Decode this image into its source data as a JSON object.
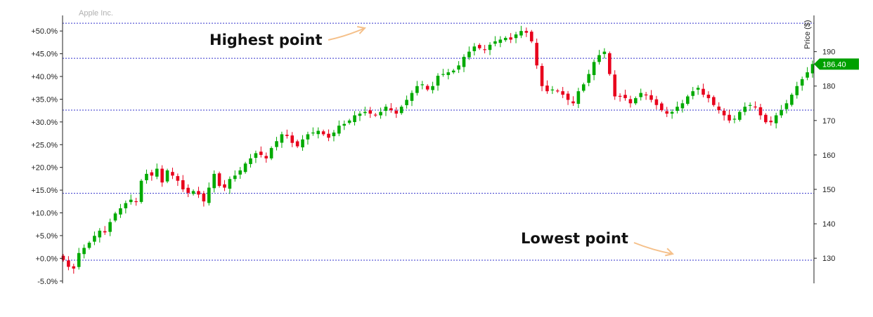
{
  "chart_data": {
    "type": "candlestick",
    "title": "Apple Inc.",
    "ylabel_right": "Price ($)",
    "left_axis": {
      "ticks": [
        -5,
        0,
        5,
        10,
        15,
        20,
        25,
        30,
        35,
        40,
        45,
        50
      ],
      "labels": [
        "-5.0%",
        "+0.0%",
        "+5.0%",
        "+10.0%",
        "+15.0%",
        "+20.0%",
        "+25.0%",
        "+30.0%",
        "+35.0%",
        "+40.0%",
        "+45.0%",
        "+50.0%"
      ],
      "range": [
        -5.5,
        52.5
      ]
    },
    "right_axis": {
      "ticks": [
        130,
        140,
        150,
        160,
        170,
        180,
        190
      ],
      "labels": [
        "130",
        "140",
        "150",
        "160",
        "170",
        "180",
        "190"
      ],
      "range": [
        122.7,
        199.3
      ]
    },
    "last_price": 186.4,
    "last_price_label": "186.40",
    "reference_lines_pct": [
      -0.4,
      14.3,
      32.6,
      44.0,
      51.7
    ],
    "closes": [
      129.5,
      127.5,
      127.0,
      131.5,
      133.0,
      134.5,
      136.5,
      138.0,
      137.5,
      140.5,
      143.0,
      144.5,
      146.0,
      147.0,
      146.5,
      152.5,
      154.5,
      154.0,
      156.0,
      152.0,
      155.5,
      154.0,
      152.5,
      150.0,
      149.0,
      149.5,
      148.5,
      146.5,
      150.5,
      154.5,
      151.0,
      150.5,
      153.0,
      154.0,
      155.5,
      157.5,
      159.0,
      160.5,
      160.0,
      159.0,
      162.0,
      164.0,
      166.0,
      165.5,
      163.5,
      162.5,
      164.5,
      166.0,
      166.5,
      167.0,
      166.0,
      165.0,
      166.5,
      168.5,
      169.0,
      170.0,
      171.5,
      172.0,
      172.5,
      172.0,
      171.5,
      172.5,
      174.0,
      173.0,
      172.0,
      174.0,
      176.0,
      178.0,
      180.0,
      180.5,
      179.0,
      180.0,
      183.0,
      183.5,
      184.0,
      184.5,
      186.0,
      188.5,
      190.0,
      191.5,
      191.0,
      190.5,
      192.0,
      193.0,
      193.5,
      194.0,
      193.5,
      195.0,
      196.0,
      195.5,
      193.0,
      186.0,
      180.0,
      178.5,
      179.0,
      178.5,
      177.5,
      176.0,
      175.0,
      178.5,
      180.5,
      183.5,
      187.0,
      189.0,
      190.0,
      183.5,
      177.0,
      177.0,
      176.5,
      175.0,
      176.5,
      178.0,
      177.5,
      176.0,
      174.5,
      173.0,
      172.0,
      172.5,
      174.0,
      175.0,
      177.0,
      178.5,
      179.5,
      177.5,
      176.5,
      174.5,
      173.0,
      171.5,
      170.0,
      170.5,
      172.5,
      174.0,
      174.5,
      174.0,
      171.5,
      169.5,
      169.5,
      171.5,
      173.0,
      175.0,
      177.5,
      180.0,
      182.0,
      184.0,
      186.4
    ]
  },
  "annotations": {
    "highest_label": "Highest point",
    "lowest_label": "Lowest point"
  },
  "colors": {
    "up": "#00aa00",
    "down": "#e8001c",
    "reference_line": "#3333cc",
    "arrow": "#f5c08a",
    "price_tag_bg": "#00a000",
    "price_tag_text": "#ffffff",
    "axis": "#222222",
    "title": "#b0b0b0"
  }
}
